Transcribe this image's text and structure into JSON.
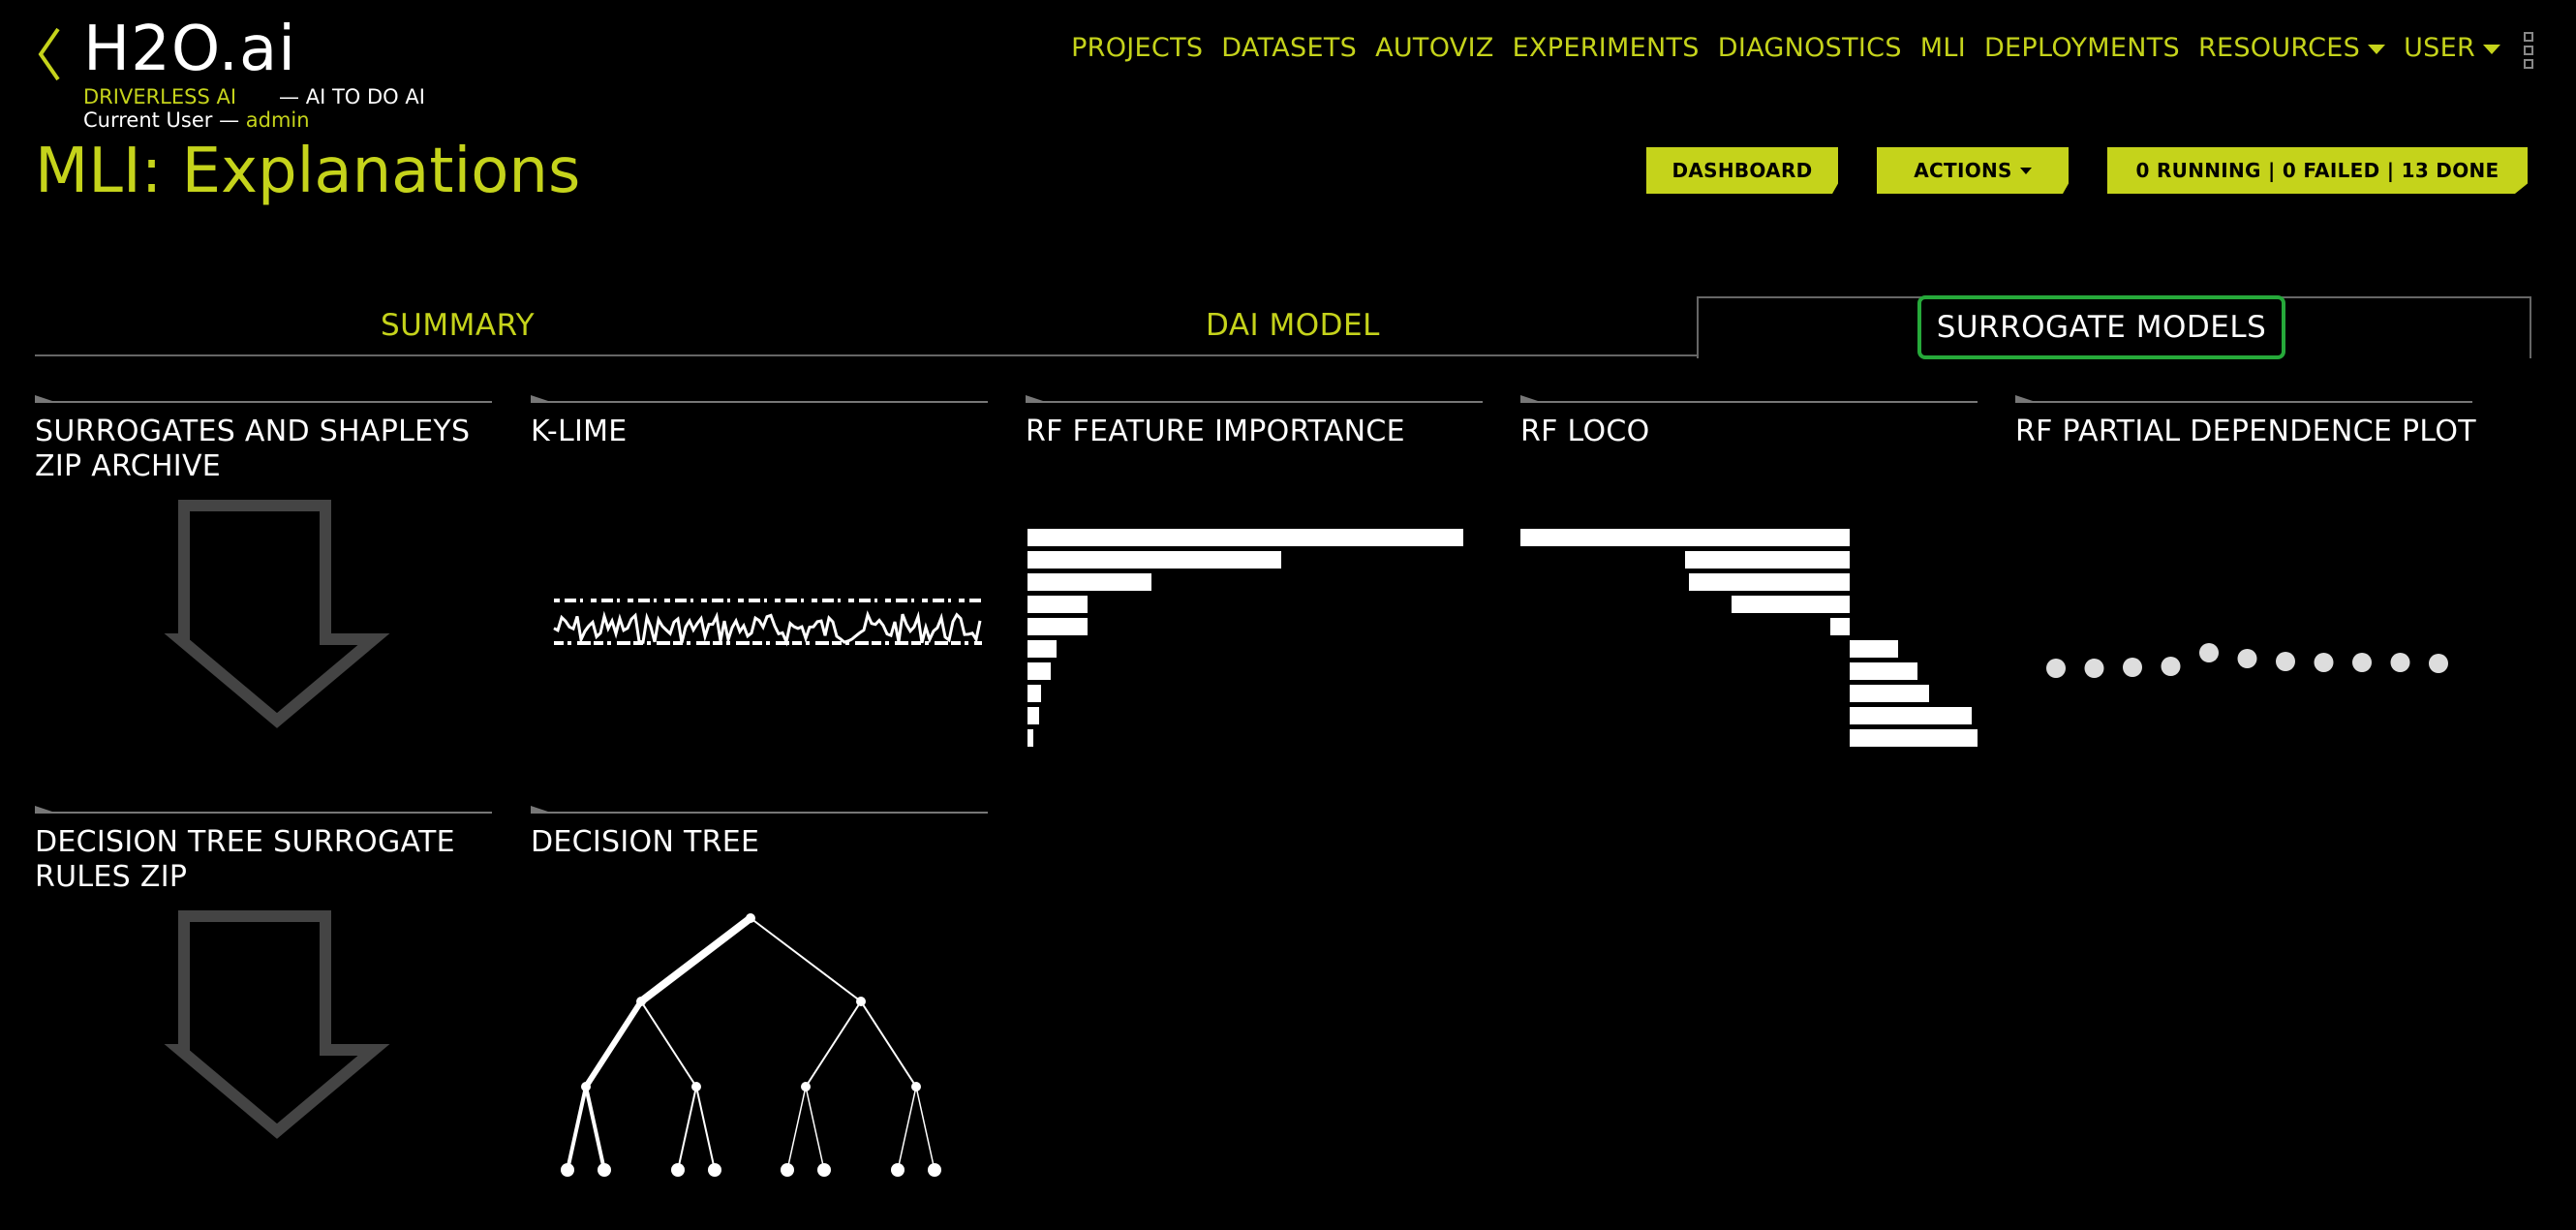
{
  "header": {
    "logo": "H2O.ai",
    "product": "DRIVERLESS AI",
    "tagline": "— AI TO DO AI",
    "current_user_label": "Current User —",
    "username": "admin",
    "page_title": "MLI: Explanations"
  },
  "nav": {
    "items": [
      "PROJECTS",
      "DATASETS",
      "AUTOVIZ",
      "EXPERIMENTS",
      "DIAGNOSTICS",
      "MLI",
      "DEPLOYMENTS",
      "RESOURCES",
      "USER"
    ]
  },
  "buttons": {
    "dashboard": "DASHBOARD",
    "actions": "ACTIONS",
    "status": "0 RUNNING | 0 FAILED | 13 DONE"
  },
  "tabs": {
    "summary": "SUMMARY",
    "dai_model": "DAI MODEL",
    "surrogate_models": "SURROGATE MODELS"
  },
  "tiles": [
    {
      "title": "SURROGATES AND SHAPLEYS ZIP ARCHIVE"
    },
    {
      "title": "K-LIME"
    },
    {
      "title": "RF FEATURE IMPORTANCE"
    },
    {
      "title": "RF LOCO"
    },
    {
      "title": "RF PARTIAL DEPENDENCE PLOT"
    },
    {
      "title": "DECISION TREE SURROGATE RULES ZIP"
    },
    {
      "title": "DECISION TREE"
    }
  ],
  "colors": {
    "accent": "#c5d31b",
    "active_tab_outline": "#26a93a",
    "background": "#000000"
  },
  "icons": [
    "back-chevron-icon",
    "caret-down-icon",
    "grid-menu-icon",
    "download-arrow-icon"
  ]
}
